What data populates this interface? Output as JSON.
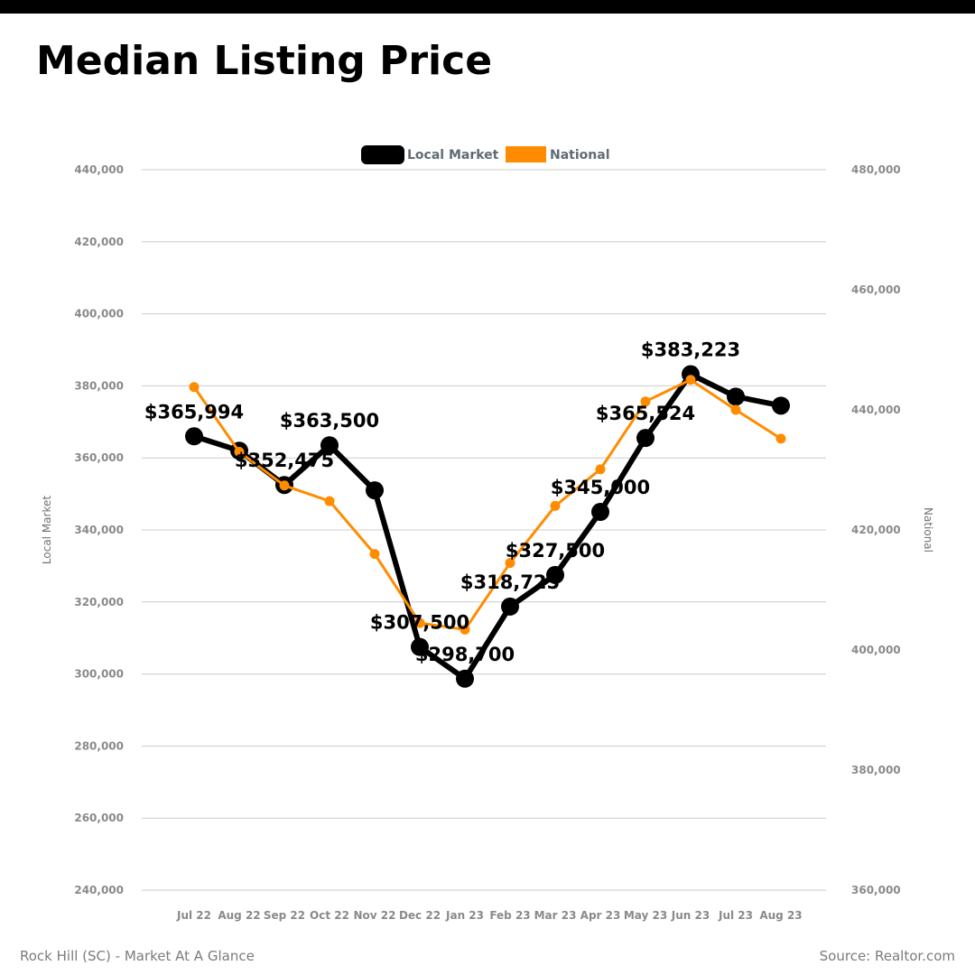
{
  "page": {
    "title": "Median Listing Price",
    "footer_left": "Rock Hill (SC) - Market At A Glance",
    "footer_right": "Source: Realtor.com"
  },
  "chart_data": {
    "type": "line",
    "categories": [
      "Jul 22",
      "Aug 22",
      "Sep 22",
      "Oct 22",
      "Nov 22",
      "Dec 22",
      "Jan 23",
      "Feb 23",
      "Mar 23",
      "Apr 23",
      "May 23",
      "Jun 23",
      "Jul 23",
      "Aug 23"
    ],
    "series": [
      {
        "name": "Local Market",
        "axis": "left",
        "color": "#000000",
        "values": [
          365994,
          362000,
          352475,
          363500,
          351000,
          307500,
          298700,
          318725,
          327500,
          345000,
          365524,
          383223,
          377000,
          374500
        ],
        "data_labels": [
          "$365,994",
          "",
          "$352,475",
          "$363,500",
          "",
          "$307,500",
          "$298,700",
          "$318,725",
          "$327,500",
          "$345,000",
          "$365,524",
          "$383,223",
          "",
          ""
        ]
      },
      {
        "name": "National",
        "axis": "right",
        "color": "#ff8c00",
        "values": [
          443800,
          433000,
          427400,
          424800,
          416000,
          404500,
          403400,
          414500,
          424000,
          430100,
          441400,
          445000,
          440000,
          435200
        ]
      }
    ],
    "y_left": {
      "label": "Local Market",
      "min": 240000,
      "max": 440000,
      "ticks": [
        "240,000",
        "260,000",
        "280,000",
        "300,000",
        "320,000",
        "340,000",
        "360,000",
        "380,000",
        "400,000",
        "420,000",
        "440,000"
      ]
    },
    "y_right": {
      "label": "National",
      "min": 360000,
      "max": 480000,
      "ticks": [
        "360,000",
        "380,000",
        "400,000",
        "420,000",
        "440,000",
        "460,000",
        "480,000"
      ]
    },
    "grid": "horizontal",
    "legend": "top-center"
  }
}
